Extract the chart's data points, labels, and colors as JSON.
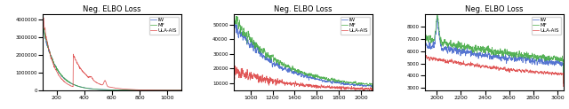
{
  "title": "Neg. ELBO Loss",
  "legend": [
    "IW",
    "MF",
    "ULA-AIS"
  ],
  "colors": [
    "#4466cc",
    "#44aa44",
    "#dd4444"
  ],
  "subplot1": {
    "xlim": [
      100,
      1100
    ],
    "ylim": [
      0,
      4300000
    ],
    "x_start": 100,
    "x_end": 1100,
    "n_points": 1000
  },
  "subplot2": {
    "xlim": [
      850,
      2100
    ],
    "ylim": [
      5000,
      57000
    ],
    "x_start": 850,
    "x_end": 2100,
    "n_points": 1250
  },
  "subplot3": {
    "xlim": [
      1900,
      3050
    ],
    "ylim": [
      2800,
      9000
    ],
    "x_start": 1900,
    "x_end": 3050,
    "n_points": 1150
  }
}
